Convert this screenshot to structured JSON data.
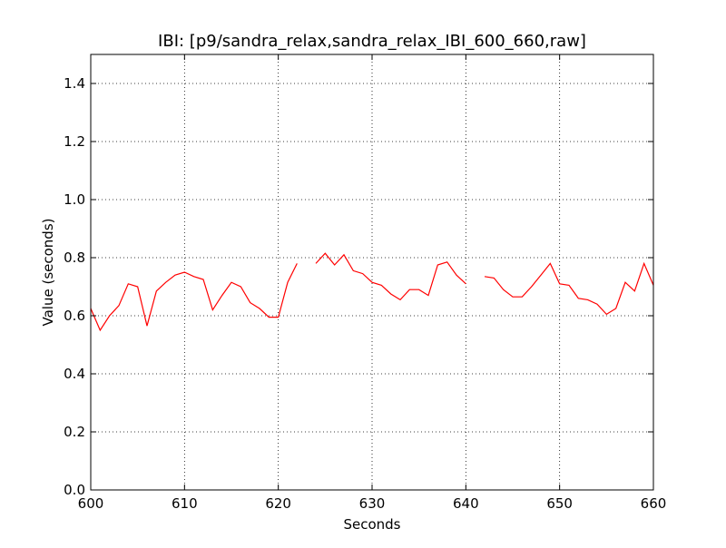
{
  "chart_data": {
    "type": "line",
    "title": "IBI: [p9/sandra_relax,sandra_relax_IBI_600_660,raw]",
    "xlabel": "Seconds",
    "ylabel": "Value (seconds)",
    "xlim": [
      600,
      660
    ],
    "ylim": [
      0.0,
      1.5
    ],
    "xticks": [
      600,
      610,
      620,
      630,
      640,
      650,
      660
    ],
    "xtick_labels": [
      "600",
      "610",
      "620",
      "630",
      "640",
      "650",
      "660"
    ],
    "yticks": [
      0.0,
      0.2,
      0.4,
      0.6,
      0.8,
      1.0,
      1.2,
      1.4
    ],
    "ytick_labels": [
      "0.0",
      "0.2",
      "0.4",
      "0.6",
      "0.8",
      "1.0",
      "1.2",
      "1.4"
    ],
    "grid": true,
    "line_color": "#ff0000",
    "series": [
      {
        "name": "IBI",
        "segments": [
          {
            "x": [
              600,
              601,
              602,
              603,
              604,
              605,
              606,
              607,
              608,
              609,
              610,
              611,
              612,
              613,
              614,
              615,
              616,
              617,
              618,
              619,
              620,
              621,
              622
            ],
            "y": [
              0.625,
              0.55,
              0.6,
              0.635,
              0.71,
              0.7,
              0.565,
              0.685,
              0.715,
              0.74,
              0.75,
              0.735,
              0.725,
              0.62,
              0.67,
              0.715,
              0.7,
              0.645,
              0.625,
              0.595,
              0.595,
              0.715,
              0.78
            ]
          },
          {
            "x": [
              624,
              625,
              626,
              627,
              628,
              629,
              630,
              631,
              632,
              633,
              634,
              635,
              636,
              637,
              638,
              639,
              640
            ],
            "y": [
              0.78,
              0.815,
              0.775,
              0.81,
              0.755,
              0.745,
              0.715,
              0.705,
              0.675,
              0.655,
              0.69,
              0.69,
              0.67,
              0.775,
              0.785,
              0.74,
              0.71
            ]
          },
          {
            "x": [
              642,
              643,
              644,
              645,
              646,
              647,
              648,
              649,
              650,
              651,
              652,
              653,
              654,
              655,
              656,
              657,
              658,
              659,
              660
            ],
            "y": [
              0.735,
              0.73,
              0.69,
              0.665,
              0.665,
              0.7,
              0.74,
              0.78,
              0.71,
              0.705,
              0.66,
              0.655,
              0.64,
              0.605,
              0.625,
              0.715,
              0.685,
              0.78,
              0.705
            ]
          }
        ]
      }
    ]
  }
}
